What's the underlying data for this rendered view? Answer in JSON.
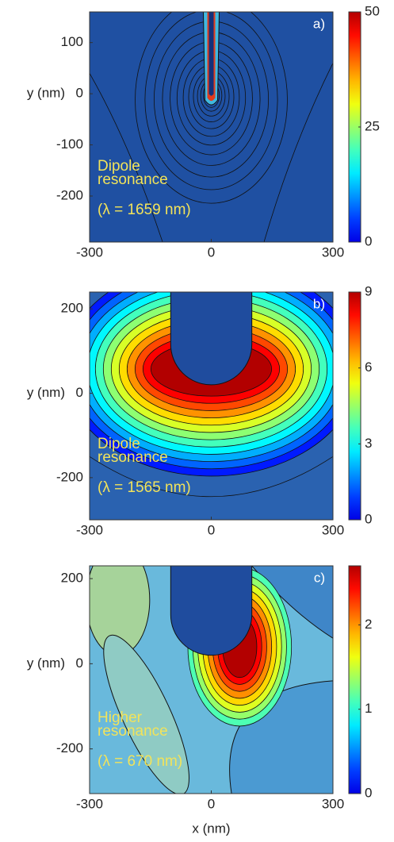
{
  "chart_data": [
    {
      "type": "contour",
      "panel_label": "a)",
      "annotation": [
        "Dipole",
        "resonance",
        "(λ = 1659 nm)"
      ],
      "y_label": "y (nm)",
      "xlim": [
        -300,
        300
      ],
      "xticks": [
        -300,
        0,
        300
      ],
      "ylim": [
        -290,
        160
      ],
      "yticks": [
        100,
        0,
        -100,
        -200
      ],
      "colormap": "jet",
      "colorbar": {
        "lim": [
          0,
          50
        ],
        "ticks": [
          0,
          25,
          50
        ]
      }
    },
    {
      "type": "contour",
      "panel_label": "b)",
      "annotation": [
        "Dipole",
        "resonance",
        "(λ = 1565 nm)"
      ],
      "y_label": "y (nm)",
      "xlim": [
        -300,
        300
      ],
      "xticks": [
        -300,
        0,
        300
      ],
      "ylim": [
        -300,
        240
      ],
      "yticks": [
        200,
        0,
        -200
      ],
      "colormap": "jet",
      "colorbar": {
        "lim": [
          0,
          9
        ],
        "ticks": [
          0,
          3,
          6,
          9
        ]
      }
    },
    {
      "type": "contour",
      "panel_label": "c)",
      "annotation": [
        "Higher",
        "resonance",
        "(λ = 670 nm)"
      ],
      "y_label": "y (nm)",
      "x_label": "x (nm)",
      "xlim": [
        -300,
        300
      ],
      "xticks": [
        -300,
        0,
        300
      ],
      "ylim": [
        -305,
        230
      ],
      "yticks": [
        200,
        0,
        -200
      ],
      "colormap": "jet",
      "colorbar": {
        "lim": [
          0,
          2.7
        ],
        "ticks": [
          0,
          1,
          2
        ]
      }
    }
  ]
}
